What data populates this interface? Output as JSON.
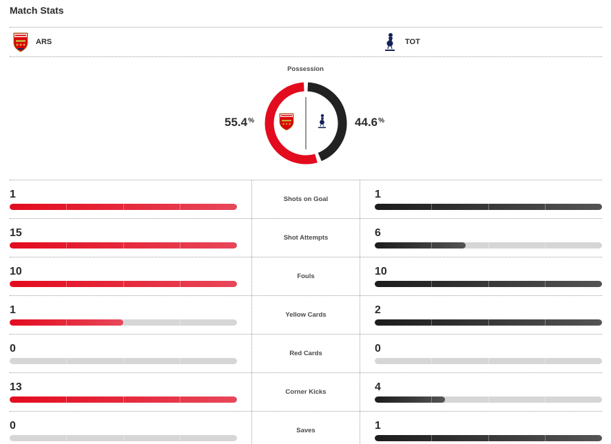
{
  "title": "Match Stats",
  "teams": {
    "home": {
      "abbr": "ARS",
      "logo_icon": "arsenal-crest-icon",
      "color": "#e30b1e"
    },
    "away": {
      "abbr": "TOT",
      "logo_icon": "tottenham-crest-icon",
      "color": "#222222"
    }
  },
  "possession": {
    "label": "Possession",
    "home_value": "55.4",
    "away_value": "44.6",
    "unit": "%",
    "home_fraction": 0.554,
    "away_fraction": 0.446
  },
  "stats": [
    {
      "label": "Shots on Goal",
      "home": "1",
      "away": "1",
      "home_fill": 1.0,
      "away_fill": 1.0
    },
    {
      "label": "Shot Attempts",
      "home": "15",
      "away": "6",
      "home_fill": 1.0,
      "away_fill": 0.4
    },
    {
      "label": "Fouls",
      "home": "10",
      "away": "10",
      "home_fill": 1.0,
      "away_fill": 1.0
    },
    {
      "label": "Yellow Cards",
      "home": "1",
      "away": "2",
      "home_fill": 0.5,
      "away_fill": 1.0
    },
    {
      "label": "Red Cards",
      "home": "0",
      "away": "0",
      "home_fill": 0.0,
      "away_fill": 0.0
    },
    {
      "label": "Corner Kicks",
      "home": "13",
      "away": "4",
      "home_fill": 1.0,
      "away_fill": 0.308
    },
    {
      "label": "Saves",
      "home": "0",
      "away": "1",
      "home_fill": 0.0,
      "away_fill": 1.0
    }
  ]
}
